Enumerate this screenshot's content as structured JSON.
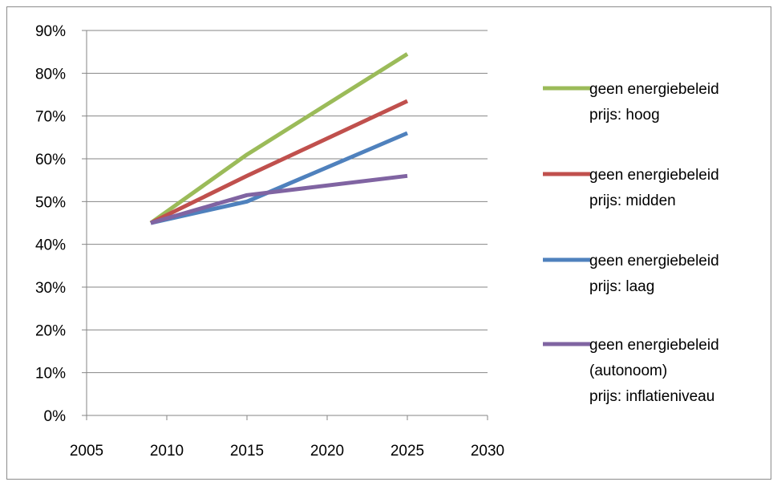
{
  "chart_data": {
    "type": "line",
    "title": "",
    "xlabel": "",
    "ylabel": "",
    "xlim": [
      2005,
      2030
    ],
    "ylim": [
      0,
      90
    ],
    "x_ticks": [
      "2005",
      "2010",
      "2015",
      "2020",
      "2025",
      "2030"
    ],
    "y_ticks": [
      "0%",
      "10%",
      "20%",
      "30%",
      "40%",
      "50%",
      "60%",
      "70%",
      "80%",
      "90%"
    ],
    "grid": "horizontal",
    "legend_position": "right",
    "series": [
      {
        "name": "geen energiebeleid prijs: hoog",
        "lines": [
          "geen energiebeleid",
          "prijs: hoog"
        ],
        "color": "#9BBB59",
        "x": [
          2009,
          2015,
          2025
        ],
        "values": [
          45,
          61,
          84.5
        ]
      },
      {
        "name": "geen energiebeleid prijs: midden",
        "lines": [
          "geen energiebeleid",
          "prijs: midden"
        ],
        "color": "#C0504D",
        "x": [
          2009,
          2015,
          2025
        ],
        "values": [
          45,
          56,
          73.5
        ]
      },
      {
        "name": "geen energiebeleid prijs: laag",
        "lines": [
          "geen energiebeleid",
          "prijs: laag"
        ],
        "color": "#4F81BD",
        "x": [
          2009,
          2015,
          2025
        ],
        "values": [
          45,
          50,
          66
        ]
      },
      {
        "name": "geen energiebeleid (autonoom) prijs: inflatieniveau",
        "lines": [
          "geen energiebeleid",
          "(autonoom)",
          "prijs: inflatieniveau"
        ],
        "color": "#8064A2",
        "x": [
          2009,
          2015,
          2025
        ],
        "values": [
          45,
          51.5,
          56
        ]
      }
    ]
  }
}
